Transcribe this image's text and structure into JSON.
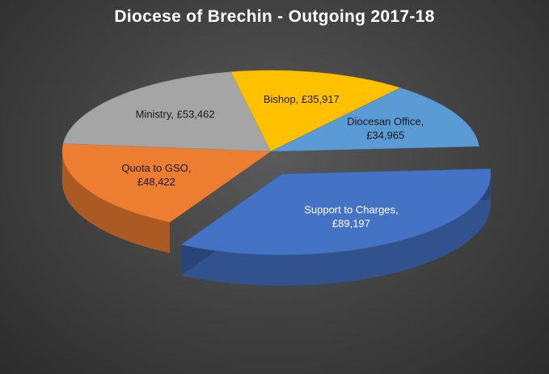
{
  "chart_data": {
    "type": "pie",
    "title": "Diocese of Brechin - Outgoing 2017-18",
    "slices": [
      {
        "label": "Support to Charges",
        "value_text": "£89,197",
        "value": 89197,
        "color": "#4472C4",
        "label_color": "#ffffff",
        "exploded": true
      },
      {
        "label": "Quota to GSO",
        "value_text": "£48,422",
        "value": 48422,
        "color": "#ED7D31",
        "label_color": "#1a1a1a",
        "exploded": false
      },
      {
        "label": "Ministry",
        "value_text": "£53,462",
        "value": 53462,
        "color": "#A5A5A5",
        "label_color": "#1a1a1a",
        "exploded": false
      },
      {
        "label": "Bishop",
        "value_text": "£35,917",
        "value": 35917,
        "color": "#FFC000",
        "label_color": "#1a1a1a",
        "exploded": false
      },
      {
        "label": "Diocesan Office",
        "value_text": "£34,965",
        "value": 34965,
        "color": "#5B9BD5",
        "label_color": "#1a1a1a",
        "exploded": false
      }
    ],
    "legend": "none",
    "style": "3d-exploded-pie"
  }
}
